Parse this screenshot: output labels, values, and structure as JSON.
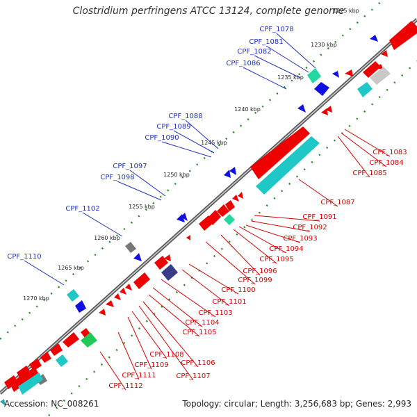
{
  "title": "Clostridium perfringens ATCC 13124, complete genome",
  "footer": {
    "accession": "Accession: NC_008261",
    "summary": "Topology: circular; Length: 3,256,683 bp; Genes: 2,993"
  },
  "colors": {
    "blue_label": "#1f2fbf",
    "red_label": "#d10000",
    "backbone": "#777777",
    "ticks": "#228b22"
  },
  "ruler_ticks": [
    {
      "label": "1225 kbp"
    },
    {
      "label": "1230 kbp"
    },
    {
      "label": "1235 kbp"
    },
    {
      "label": "1240 kbp"
    },
    {
      "label": "1245 kbp"
    },
    {
      "label": "1250 kbp"
    },
    {
      "label": "1255 kbp"
    },
    {
      "label": "1260 kbp"
    },
    {
      "label": "1265 kbp"
    },
    {
      "label": "1270 kbp"
    }
  ],
  "blue_genes": [
    "CPF_1078",
    "CPF_1081",
    "CPF_1082",
    "CPF_1086",
    "CPF_1088",
    "CPF_1089",
    "CPF_1090",
    "CPF_1097",
    "CPF_1098",
    "CPF_1102",
    "CPF_1110"
  ],
  "red_genes": [
    "CPF_1083",
    "CPF_1084",
    "CPF_1085",
    "CPF_1087",
    "CPF_1091",
    "CPF_1092",
    "CPF_1093",
    "CPF_1094",
    "CPF_1095",
    "CPF_1096",
    "CPF_1099",
    "CPF_1100",
    "CPF_1101",
    "CPF_1103",
    "CPF_1104",
    "CPF_1105",
    "CPF_1106",
    "CPF_1107",
    "CPF_1108",
    "CPF_1109",
    "CPF_1111",
    "CPF_1112"
  ]
}
